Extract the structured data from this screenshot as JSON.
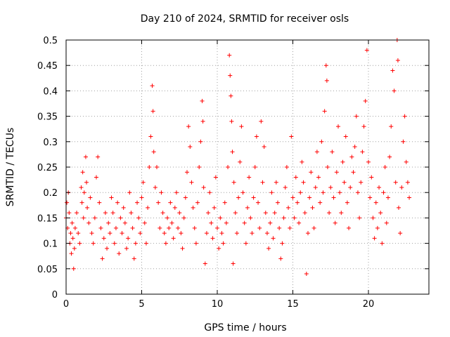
{
  "chart_data": {
    "type": "scatter",
    "title": "Day 210 of 2024, SRMTID for receiver osls",
    "xlabel": "GPS time / hours",
    "ylabel": "SRMTID / TECUs",
    "xlim": [
      0,
      24
    ],
    "ylim": [
      0,
      0.5
    ],
    "x_ticks": [
      0,
      5,
      10,
      15,
      20
    ],
    "y_ticks": [
      0,
      0.05,
      0.1,
      0.15,
      0.2,
      0.25,
      0.3,
      0.35,
      0.4,
      0.45,
      0.5
    ],
    "grid": true,
    "marker": "+",
    "series": [
      {
        "color": "#ff0000",
        "points": [
          [
            0.0,
            0.15
          ],
          [
            0.05,
            0.18
          ],
          [
            0.1,
            0.13
          ],
          [
            0.15,
            0.2
          ],
          [
            0.2,
            0.16
          ],
          [
            0.25,
            0.1
          ],
          [
            0.3,
            0.12
          ],
          [
            0.35,
            0.08
          ],
          [
            0.4,
            0.14
          ],
          [
            0.45,
            0.11
          ],
          [
            0.5,
            0.05
          ],
          [
            0.55,
            0.09
          ],
          [
            0.6,
            0.13
          ],
          [
            0.7,
            0.16
          ],
          [
            0.8,
            0.12
          ],
          [
            0.9,
            0.1
          ],
          [
            1.0,
            0.21
          ],
          [
            1.05,
            0.18
          ],
          [
            1.1,
            0.24
          ],
          [
            1.15,
            0.15
          ],
          [
            1.2,
            0.2
          ],
          [
            1.3,
            0.27
          ],
          [
            1.35,
            0.22
          ],
          [
            1.4,
            0.17
          ],
          [
            1.5,
            0.14
          ],
          [
            1.6,
            0.19
          ],
          [
            1.7,
            0.12
          ],
          [
            1.8,
            0.1
          ],
          [
            1.9,
            0.15
          ],
          [
            2.0,
            0.23
          ],
          [
            2.1,
            0.27
          ],
          [
            2.2,
            0.18
          ],
          [
            2.3,
            0.13
          ],
          [
            2.4,
            0.07
          ],
          [
            2.5,
            0.11
          ],
          [
            2.6,
            0.16
          ],
          [
            2.7,
            0.09
          ],
          [
            2.8,
            0.14
          ],
          [
            2.9,
            0.12
          ],
          [
            3.0,
            0.19
          ],
          [
            3.1,
            0.16
          ],
          [
            3.2,
            0.1
          ],
          [
            3.3,
            0.13
          ],
          [
            3.4,
            0.18
          ],
          [
            3.5,
            0.08
          ],
          [
            3.6,
            0.15
          ],
          [
            3.7,
            0.12
          ],
          [
            3.8,
            0.17
          ],
          [
            3.9,
            0.14
          ],
          [
            4.0,
            0.09
          ],
          [
            4.1,
            0.11
          ],
          [
            4.2,
            0.2
          ],
          [
            4.3,
            0.16
          ],
          [
            4.4,
            0.13
          ],
          [
            4.5,
            0.07
          ],
          [
            4.6,
            0.1
          ],
          [
            4.7,
            0.18
          ],
          [
            4.8,
            0.15
          ],
          [
            4.9,
            0.12
          ],
          [
            5.0,
            0.19
          ],
          [
            5.1,
            0.22
          ],
          [
            5.2,
            0.14
          ],
          [
            5.3,
            0.1
          ],
          [
            5.4,
            0.17
          ],
          [
            5.5,
            0.25
          ],
          [
            5.6,
            0.31
          ],
          [
            5.7,
            0.41
          ],
          [
            5.75,
            0.36
          ],
          [
            5.8,
            0.28
          ],
          [
            5.9,
            0.21
          ],
          [
            6.0,
            0.25
          ],
          [
            6.1,
            0.18
          ],
          [
            6.2,
            0.13
          ],
          [
            6.3,
            0.2
          ],
          [
            6.4,
            0.16
          ],
          [
            6.5,
            0.12
          ],
          [
            6.6,
            0.1
          ],
          [
            6.7,
            0.15
          ],
          [
            6.8,
            0.13
          ],
          [
            6.9,
            0.18
          ],
          [
            7.0,
            0.14
          ],
          [
            7.1,
            0.11
          ],
          [
            7.2,
            0.17
          ],
          [
            7.3,
            0.2
          ],
          [
            7.4,
            0.13
          ],
          [
            7.5,
            0.16
          ],
          [
            7.6,
            0.12
          ],
          [
            7.7,
            0.09
          ],
          [
            7.8,
            0.15
          ],
          [
            7.9,
            0.19
          ],
          [
            8.0,
            0.24
          ],
          [
            8.1,
            0.33
          ],
          [
            8.2,
            0.29
          ],
          [
            8.3,
            0.22
          ],
          [
            8.4,
            0.17
          ],
          [
            8.5,
            0.13
          ],
          [
            8.6,
            0.1
          ],
          [
            8.7,
            0.18
          ],
          [
            8.8,
            0.25
          ],
          [
            8.9,
            0.3
          ],
          [
            9.0,
            0.38
          ],
          [
            9.05,
            0.34
          ],
          [
            9.1,
            0.21
          ],
          [
            9.2,
            0.06
          ],
          [
            9.3,
            0.12
          ],
          [
            9.4,
            0.16
          ],
          [
            9.5,
            0.2
          ],
          [
            9.6,
            0.14
          ],
          [
            9.7,
            0.11
          ],
          [
            9.8,
            0.17
          ],
          [
            9.9,
            0.23
          ],
          [
            10.0,
            0.13
          ],
          [
            10.1,
            0.09
          ],
          [
            10.2,
            0.15
          ],
          [
            10.3,
            0.12
          ],
          [
            10.4,
            0.1
          ],
          [
            10.5,
            0.18
          ],
          [
            10.6,
            0.14
          ],
          [
            10.7,
            0.25
          ],
          [
            10.8,
            0.47
          ],
          [
            10.85,
            0.43
          ],
          [
            10.9,
            0.39
          ],
          [
            10.95,
            0.34
          ],
          [
            11.0,
            0.28
          ],
          [
            11.05,
            0.06
          ],
          [
            11.1,
            0.22
          ],
          [
            11.2,
            0.16
          ],
          [
            11.3,
            0.12
          ],
          [
            11.4,
            0.19
          ],
          [
            11.5,
            0.26
          ],
          [
            11.6,
            0.33
          ],
          [
            11.7,
            0.2
          ],
          [
            11.8,
            0.14
          ],
          [
            11.9,
            0.1
          ],
          [
            12.0,
            0.17
          ],
          [
            12.1,
            0.23
          ],
          [
            12.2,
            0.15
          ],
          [
            12.3,
            0.12
          ],
          [
            12.4,
            0.19
          ],
          [
            12.5,
            0.25
          ],
          [
            12.6,
            0.31
          ],
          [
            12.7,
            0.18
          ],
          [
            12.8,
            0.13
          ],
          [
            12.9,
            0.34
          ],
          [
            13.0,
            0.22
          ],
          [
            13.1,
            0.29
          ],
          [
            13.2,
            0.16
          ],
          [
            13.3,
            0.12
          ],
          [
            13.4,
            0.09
          ],
          [
            13.5,
            0.14
          ],
          [
            13.6,
            0.2
          ],
          [
            13.7,
            0.11
          ],
          [
            13.8,
            0.16
          ],
          [
            13.9,
            0.22
          ],
          [
            14.0,
            0.18
          ],
          [
            14.1,
            0.13
          ],
          [
            14.2,
            0.07
          ],
          [
            14.3,
            0.1
          ],
          [
            14.4,
            0.15
          ],
          [
            14.5,
            0.21
          ],
          [
            14.6,
            0.25
          ],
          [
            14.7,
            0.17
          ],
          [
            14.8,
            0.13
          ],
          [
            14.9,
            0.31
          ],
          [
            15.0,
            0.19
          ],
          [
            15.1,
            0.15
          ],
          [
            15.2,
            0.23
          ],
          [
            15.3,
            0.18
          ],
          [
            15.4,
            0.14
          ],
          [
            15.5,
            0.2
          ],
          [
            15.6,
            0.26
          ],
          [
            15.7,
            0.22
          ],
          [
            15.8,
            0.16
          ],
          [
            15.9,
            0.04
          ],
          [
            16.0,
            0.12
          ],
          [
            16.1,
            0.19
          ],
          [
            16.2,
            0.24
          ],
          [
            16.3,
            0.17
          ],
          [
            16.4,
            0.13
          ],
          [
            16.5,
            0.21
          ],
          [
            16.6,
            0.28
          ],
          [
            16.7,
            0.23
          ],
          [
            16.8,
            0.18
          ],
          [
            16.9,
            0.3
          ],
          [
            17.0,
            0.2
          ],
          [
            17.1,
            0.36
          ],
          [
            17.2,
            0.45
          ],
          [
            17.25,
            0.42
          ],
          [
            17.3,
            0.25
          ],
          [
            17.4,
            0.16
          ],
          [
            17.5,
            0.21
          ],
          [
            17.6,
            0.28
          ],
          [
            17.7,
            0.19
          ],
          [
            17.8,
            0.14
          ],
          [
            17.9,
            0.24
          ],
          [
            18.0,
            0.33
          ],
          [
            18.1,
            0.2
          ],
          [
            18.2,
            0.16
          ],
          [
            18.3,
            0.26
          ],
          [
            18.4,
            0.22
          ],
          [
            18.5,
            0.31
          ],
          [
            18.6,
            0.18
          ],
          [
            18.7,
            0.13
          ],
          [
            18.8,
            0.21
          ],
          [
            18.9,
            0.27
          ],
          [
            19.0,
            0.24
          ],
          [
            19.1,
            0.29
          ],
          [
            19.2,
            0.35
          ],
          [
            19.3,
            0.2
          ],
          [
            19.4,
            0.15
          ],
          [
            19.5,
            0.22
          ],
          [
            19.6,
            0.28
          ],
          [
            19.7,
            0.33
          ],
          [
            19.8,
            0.38
          ],
          [
            19.9,
            0.48
          ],
          [
            20.0,
            0.26
          ],
          [
            20.1,
            0.19
          ],
          [
            20.2,
            0.23
          ],
          [
            20.3,
            0.15
          ],
          [
            20.4,
            0.11
          ],
          [
            20.5,
            0.18
          ],
          [
            20.6,
            0.13
          ],
          [
            20.7,
            0.21
          ],
          [
            20.8,
            0.16
          ],
          [
            20.9,
            0.1
          ],
          [
            21.0,
            0.2
          ],
          [
            21.1,
            0.25
          ],
          [
            21.2,
            0.14
          ],
          [
            21.3,
            0.19
          ],
          [
            21.4,
            0.27
          ],
          [
            21.5,
            0.33
          ],
          [
            21.6,
            0.44
          ],
          [
            21.7,
            0.4
          ],
          [
            21.8,
            0.22
          ],
          [
            21.9,
            0.5
          ],
          [
            21.95,
            0.46
          ],
          [
            22.0,
            0.17
          ],
          [
            22.1,
            0.12
          ],
          [
            22.2,
            0.21
          ],
          [
            22.3,
            0.3
          ],
          [
            22.4,
            0.35
          ],
          [
            22.5,
            0.26
          ],
          [
            22.6,
            0.22
          ],
          [
            22.7,
            0.19
          ]
        ]
      }
    ]
  }
}
